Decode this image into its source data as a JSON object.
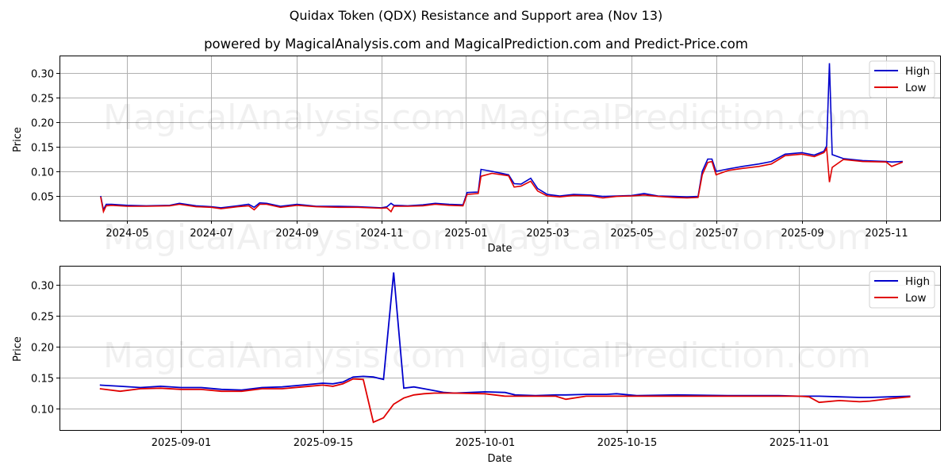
{
  "header": {
    "title": "Quidax Token (QDX) Resistance and Support area (Nov 13)",
    "subtitle": "powered by MagicalAnalysis.com and MagicalPrediction.com and Predict-Price.com"
  },
  "watermarks": [
    "MagicalAnalysis.com",
    "MagicalPrediction.com"
  ],
  "colors": {
    "high": "#0000cc",
    "low": "#e00000",
    "grid": "#b0b0b0",
    "axis": "#000000"
  },
  "chart_data": [
    {
      "type": "line",
      "title": "Full history",
      "xlabel": "Date",
      "ylabel": "Price",
      "ylim": [
        0.0,
        0.335
      ],
      "grid": true,
      "legend": {
        "position": "upper right",
        "entries": [
          "High",
          "Low"
        ]
      },
      "x_ticks": [
        "2024-05",
        "2024-07",
        "2024-09",
        "2024-11",
        "2025-01",
        "2025-03",
        "2025-05",
        "2025-07",
        "2025-09",
        "2025-11"
      ],
      "y_ticks": [
        "0.05",
        "0.10",
        "0.15",
        "0.20",
        "0.25",
        "0.30"
      ],
      "x": [
        "2024-04-12",
        "2024-04-14",
        "2024-04-16",
        "2024-04-20",
        "2024-05-01",
        "2024-05-15",
        "2024-06-01",
        "2024-06-08",
        "2024-06-20",
        "2024-07-01",
        "2024-07-08",
        "2024-07-20",
        "2024-07-28",
        "2024-08-01",
        "2024-08-05",
        "2024-08-10",
        "2024-08-20",
        "2024-09-01",
        "2024-09-15",
        "2024-10-01",
        "2024-10-15",
        "2024-11-01",
        "2024-11-05",
        "2024-11-08",
        "2024-11-10",
        "2024-11-20",
        "2024-12-01",
        "2024-12-10",
        "2024-12-20",
        "2024-12-30",
        "2025-01-02",
        "2025-01-10",
        "2025-01-12",
        "2025-01-20",
        "2025-02-01",
        "2025-02-05",
        "2025-02-10",
        "2025-02-17",
        "2025-02-22",
        "2025-03-01",
        "2025-03-10",
        "2025-03-20",
        "2025-04-01",
        "2025-04-10",
        "2025-04-20",
        "2025-05-01",
        "2025-05-10",
        "2025-05-20",
        "2025-06-01",
        "2025-06-10",
        "2025-06-18",
        "2025-06-21",
        "2025-06-25",
        "2025-06-28",
        "2025-07-01",
        "2025-07-10",
        "2025-07-20",
        "2025-08-01",
        "2025-08-10",
        "2025-08-20",
        "2025-09-01",
        "2025-09-10",
        "2025-09-17",
        "2025-09-19",
        "2025-09-21",
        "2025-09-23",
        "2025-10-01",
        "2025-10-15",
        "2025-11-01",
        "2025-11-05",
        "2025-11-13"
      ],
      "series": [
        {
          "name": "High",
          "values": [
            0.05,
            0.022,
            0.033,
            0.033,
            0.031,
            0.03,
            0.031,
            0.035,
            0.03,
            0.028,
            0.026,
            0.03,
            0.033,
            0.027,
            0.036,
            0.035,
            0.029,
            0.033,
            0.029,
            0.029,
            0.028,
            0.026,
            0.028,
            0.035,
            0.031,
            0.03,
            0.032,
            0.035,
            0.033,
            0.032,
            0.057,
            0.058,
            0.104,
            0.1,
            0.093,
            0.075,
            0.074,
            0.086,
            0.065,
            0.053,
            0.05,
            0.053,
            0.052,
            0.049,
            0.05,
            0.051,
            0.055,
            0.05,
            0.049,
            0.048,
            0.049,
            0.1,
            0.125,
            0.125,
            0.1,
            0.105,
            0.11,
            0.115,
            0.12,
            0.135,
            0.138,
            0.133,
            0.141,
            0.152,
            0.32,
            0.134,
            0.126,
            0.122,
            0.12,
            0.119,
            0.12
          ]
        },
        {
          "name": "Low",
          "values": [
            0.048,
            0.018,
            0.03,
            0.031,
            0.029,
            0.029,
            0.03,
            0.033,
            0.028,
            0.027,
            0.024,
            0.028,
            0.03,
            0.022,
            0.033,
            0.033,
            0.027,
            0.031,
            0.028,
            0.027,
            0.027,
            0.025,
            0.026,
            0.018,
            0.029,
            0.029,
            0.03,
            0.033,
            0.031,
            0.03,
            0.053,
            0.055,
            0.09,
            0.096,
            0.091,
            0.068,
            0.07,
            0.08,
            0.06,
            0.05,
            0.048,
            0.051,
            0.05,
            0.046,
            0.049,
            0.05,
            0.052,
            0.049,
            0.047,
            0.046,
            0.047,
            0.093,
            0.118,
            0.12,
            0.093,
            0.102,
            0.106,
            0.11,
            0.115,
            0.132,
            0.135,
            0.13,
            0.138,
            0.147,
            0.078,
            0.108,
            0.124,
            0.12,
            0.119,
            0.11,
            0.119
          ]
        }
      ]
    },
    {
      "type": "line",
      "title": "Recent period (zoom)",
      "xlabel": "Date",
      "ylabel": "Price",
      "ylim": [
        0.067,
        0.335
      ],
      "grid": true,
      "legend": {
        "position": "upper right",
        "entries": [
          "High",
          "Low"
        ]
      },
      "x_ticks": [
        "2025-09-01",
        "2025-09-15",
        "2025-10-01",
        "2025-10-15",
        "2025-11-01"
      ],
      "y_ticks": [
        "0.10",
        "0.15",
        "0.20",
        "0.25",
        "0.30"
      ],
      "x": [
        "2025-08-24",
        "2025-08-26",
        "2025-08-28",
        "2025-08-30",
        "2025-09-01",
        "2025-09-03",
        "2025-09-05",
        "2025-09-07",
        "2025-09-09",
        "2025-09-11",
        "2025-09-13",
        "2025-09-15",
        "2025-09-16",
        "2025-09-17",
        "2025-09-18",
        "2025-09-19",
        "2025-09-20",
        "2025-09-21",
        "2025-09-22",
        "2025-09-23",
        "2025-09-24",
        "2025-09-25",
        "2025-09-26",
        "2025-09-27",
        "2025-09-28",
        "2025-10-01",
        "2025-10-03",
        "2025-10-04",
        "2025-10-06",
        "2025-10-08",
        "2025-10-09",
        "2025-10-11",
        "2025-10-13",
        "2025-10-14",
        "2025-10-16",
        "2025-10-20",
        "2025-10-25",
        "2025-10-30",
        "2025-11-01",
        "2025-11-02",
        "2025-11-03",
        "2025-11-05",
        "2025-11-07",
        "2025-11-08",
        "2025-11-10",
        "2025-11-12"
      ],
      "series": [
        {
          "name": "High",
          "values": [
            0.138,
            0.136,
            0.134,
            0.136,
            0.134,
            0.134,
            0.131,
            0.13,
            0.134,
            0.135,
            0.138,
            0.141,
            0.14,
            0.143,
            0.151,
            0.152,
            0.151,
            0.147,
            0.32,
            0.133,
            0.135,
            0.132,
            0.129,
            0.126,
            0.125,
            0.127,
            0.126,
            0.122,
            0.121,
            0.122,
            0.122,
            0.123,
            0.123,
            0.124,
            0.121,
            0.122,
            0.121,
            0.121,
            0.12,
            0.12,
            0.12,
            0.119,
            0.118,
            0.118,
            0.119,
            0.12
          ]
        },
        {
          "name": "Low",
          "values": [
            0.132,
            0.128,
            0.132,
            0.133,
            0.131,
            0.131,
            0.128,
            0.128,
            0.132,
            0.132,
            0.135,
            0.138,
            0.136,
            0.14,
            0.148,
            0.147,
            0.078,
            0.085,
            0.107,
            0.117,
            0.122,
            0.124,
            0.125,
            0.125,
            0.125,
            0.124,
            0.12,
            0.12,
            0.12,
            0.12,
            0.115,
            0.12,
            0.12,
            0.12,
            0.12,
            0.12,
            0.12,
            0.12,
            0.12,
            0.119,
            0.11,
            0.113,
            0.111,
            0.112,
            0.116,
            0.119
          ]
        }
      ]
    }
  ]
}
